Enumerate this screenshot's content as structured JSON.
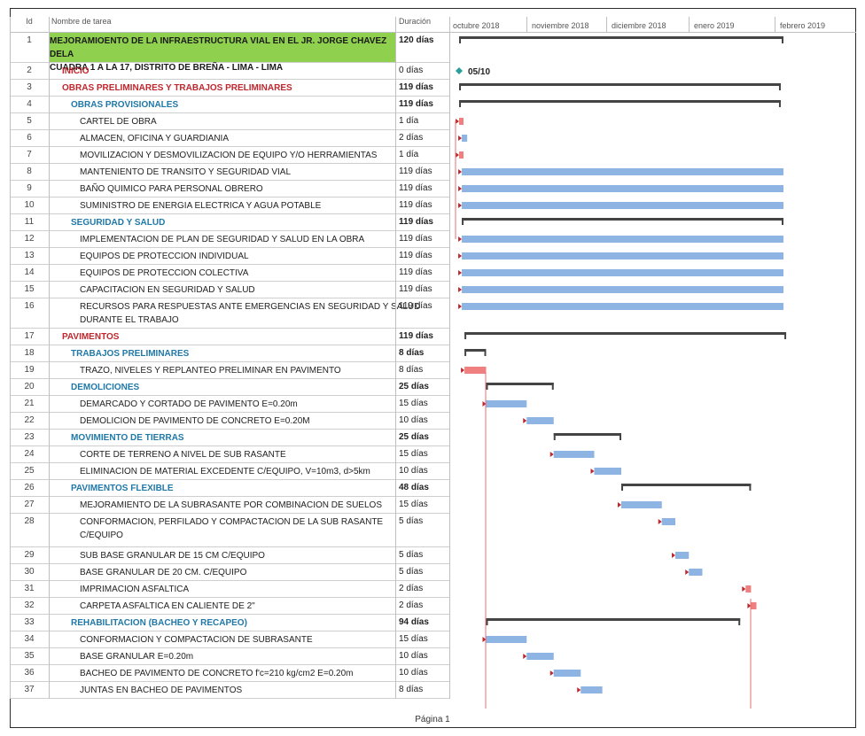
{
  "columns": {
    "id": "Id",
    "name": "Nombre de tarea",
    "duration": "Duración"
  },
  "timeline": {
    "months": [
      "octubre 2018",
      "noviembre 2018",
      "diciembre 2018",
      "enero 2019",
      "febrero 2019"
    ]
  },
  "milestone_label": "05/10",
  "footer": "Página 1",
  "colors": {
    "summary_cell": "#8fd14f",
    "bar": "#8db4e2",
    "critical_bar": "#f08080",
    "summary_bar": "#444444",
    "milestone": "#2aa198"
  },
  "rows": [
    {
      "id": "1",
      "name": "MEJORAMIOENTO DE LA INFRAESTRUCTURA VIAL EN EL JR. JORGE CHAVEZ DELA",
      "name2": "CUADRA 1 A LA 17, DISTRITO DE BREÑA - LIMA - LIMA",
      "duration": "120 días",
      "level": 0,
      "type": "summary",
      "start": 1,
      "days": 120
    },
    {
      "id": "2",
      "name": "INICIO",
      "duration": "0 días",
      "level": 1,
      "type": "milestone",
      "start": 1,
      "days": 0
    },
    {
      "id": "3",
      "name": "OBRAS PRELIMINARES Y TRABAJOS PRELIMINARES",
      "duration": "119 días",
      "level": 1,
      "type": "summary",
      "start": 1,
      "days": 119
    },
    {
      "id": "4",
      "name": "OBRAS PROVISIONALES",
      "duration": "119 días",
      "level": 2,
      "type": "summary",
      "start": 1,
      "days": 119
    },
    {
      "id": "5",
      "name": "CARTEL DE OBRA",
      "duration": "1 día",
      "level": 3,
      "type": "critical",
      "start": 1,
      "days": 1
    },
    {
      "id": "6",
      "name": "ALMACEN, OFICINA Y GUARDIANIA",
      "duration": "2 días",
      "level": 3,
      "type": "task",
      "start": 2,
      "days": 2
    },
    {
      "id": "7",
      "name": "MOVILIZACION Y DESMOVILIZACION DE EQUIPO Y/O HERRAMIENTAS",
      "duration": "1 día",
      "level": 3,
      "type": "critical",
      "start": 1,
      "days": 1
    },
    {
      "id": "8",
      "name": "MANTENIENTO DE TRANSITO Y SEGURIDAD VIAL",
      "duration": "119 días",
      "level": 3,
      "type": "task",
      "start": 2,
      "days": 119
    },
    {
      "id": "9",
      "name": "BAÑO QUIMICO PARA PERSONAL OBRERO",
      "duration": "119 días",
      "level": 3,
      "type": "task",
      "start": 2,
      "days": 119
    },
    {
      "id": "10",
      "name": "SUMINISTRO DE ENERGIA ELECTRICA Y AGUA POTABLE",
      "duration": "119 días",
      "level": 3,
      "type": "task",
      "start": 2,
      "days": 119
    },
    {
      "id": "11",
      "name": "SEGURIDAD Y SALUD",
      "duration": "119 días",
      "level": 2,
      "type": "summary",
      "start": 2,
      "days": 119
    },
    {
      "id": "12",
      "name": "IMPLEMENTACION DE PLAN DE SEGURIDAD Y SALUD EN LA OBRA",
      "duration": "119 días",
      "level": 3,
      "type": "task",
      "start": 2,
      "days": 119
    },
    {
      "id": "13",
      "name": "EQUIPOS DE PROTECCION INDIVIDUAL",
      "duration": "119 días",
      "level": 3,
      "type": "task",
      "start": 2,
      "days": 119
    },
    {
      "id": "14",
      "name": "EQUIPOS DE PROTECCION COLECTIVA",
      "duration": "119 días",
      "level": 3,
      "type": "task",
      "start": 2,
      "days": 119
    },
    {
      "id": "15",
      "name": "CAPACITACION EN SEGURIDAD Y SALUD",
      "duration": "119 días",
      "level": 3,
      "type": "task",
      "start": 2,
      "days": 119
    },
    {
      "id": "16",
      "name": "RECURSOS PARA RESPUESTAS ANTE EMERGENCIAS EN SEGURIDAD Y SALUD",
      "name2": "DURANTE EL TRABAJO",
      "duration": "119 días",
      "level": 3,
      "type": "task",
      "start": 2,
      "days": 119
    },
    {
      "id": "17",
      "name": "PAVIMENTOS",
      "duration": "119 días",
      "level": 1,
      "type": "summary",
      "start": 3,
      "days": 119
    },
    {
      "id": "18",
      "name": "TRABAJOS PRELIMINARES",
      "duration": "8 días",
      "level": 2,
      "type": "summary",
      "start": 3,
      "days": 8
    },
    {
      "id": "19",
      "name": "TRAZO, NIVELES Y REPLANTEO PRELIMINAR EN PAVIMENTO",
      "duration": "8 días",
      "level": 3,
      "type": "critical",
      "start": 3,
      "days": 8
    },
    {
      "id": "20",
      "name": "DEMOLICIONES",
      "duration": "25 días",
      "level": 2,
      "type": "summary",
      "start": 11,
      "days": 25
    },
    {
      "id": "21",
      "name": "DEMARCADO Y CORTADO DE PAVIMENTO E=0.20m",
      "duration": "15 días",
      "level": 3,
      "type": "task",
      "start": 11,
      "days": 15
    },
    {
      "id": "22",
      "name": "DEMOLICION DE PAVIMENTO DE CONCRETO E=0.20M",
      "duration": "10 días",
      "level": 3,
      "type": "task",
      "start": 26,
      "days": 10
    },
    {
      "id": "23",
      "name": "MOVIMIENTO DE TIERRAS",
      "duration": "25 días",
      "level": 2,
      "type": "summary",
      "start": 36,
      "days": 25
    },
    {
      "id": "24",
      "name": "CORTE DE TERRENO A NIVEL DE SUB RASANTE",
      "duration": "15 días",
      "level": 3,
      "type": "task",
      "start": 36,
      "days": 15
    },
    {
      "id": "25",
      "name": "ELIMINACION DE MATERIAL EXCEDENTE C/EQUIPO, V=10m3, d>5km",
      "duration": "10 días",
      "level": 3,
      "type": "task",
      "start": 51,
      "days": 10
    },
    {
      "id": "26",
      "name": "PAVIMENTOS FLEXIBLE",
      "duration": "48 días",
      "level": 2,
      "type": "summary",
      "start": 61,
      "days": 48
    },
    {
      "id": "27",
      "name": "MEJORAMIENTO DE LA SUBRASANTE POR COMBINACION DE SUELOS",
      "duration": "15 días",
      "level": 3,
      "type": "task",
      "start": 61,
      "days": 15
    },
    {
      "id": "28",
      "name": "CONFORMACION, PERFILADO Y COMPACTACION DE LA SUB RASANTE C/EQUIPO",
      "duration": "5 días",
      "level": 3,
      "type": "task",
      "start": 76,
      "days": 5,
      "tall": true
    },
    {
      "id": "29",
      "name": "SUB BASE GRANULAR DE 15 CM C/EQUIPO",
      "duration": "5 días",
      "level": 3,
      "type": "task",
      "start": 81,
      "days": 5
    },
    {
      "id": "30",
      "name": "BASE GRANULAR DE 20 CM. C/EQUIPO",
      "duration": "5 días",
      "level": 3,
      "type": "task",
      "start": 86,
      "days": 5
    },
    {
      "id": "31",
      "name": "IMPRIMACION ASFALTICA",
      "duration": "2 días",
      "level": 3,
      "type": "critical",
      "start": 107,
      "days": 2
    },
    {
      "id": "32",
      "name": "CARPETA ASFALTICA EN CALIENTE DE 2\"",
      "duration": "2 días",
      "level": 3,
      "type": "critical",
      "start": 109,
      "days": 2
    },
    {
      "id": "33",
      "name": "REHABILITACION (BACHEO Y RECAPEO)",
      "duration": "94 días",
      "level": 2,
      "type": "summary",
      "start": 11,
      "days": 94
    },
    {
      "id": "34",
      "name": "CONFORMACION Y COMPACTACION DE SUBRASANTE",
      "duration": "15 días",
      "level": 3,
      "type": "task",
      "start": 11,
      "days": 15
    },
    {
      "id": "35",
      "name": "BASE GRANULAR E=0.20m",
      "duration": "10 días",
      "level": 3,
      "type": "task",
      "start": 26,
      "days": 10
    },
    {
      "id": "36",
      "name": "BACHEO DE PAVIMENTO DE CONCRETO f'c=210 kg/cm2 E=0.20m",
      "duration": "10 días",
      "level": 3,
      "type": "task",
      "start": 36,
      "days": 10
    },
    {
      "id": "37",
      "name": "JUNTAS EN BACHEO DE PAVIMENTOS",
      "duration": "8 días",
      "level": 3,
      "type": "task",
      "start": 46,
      "days": 8
    }
  ]
}
